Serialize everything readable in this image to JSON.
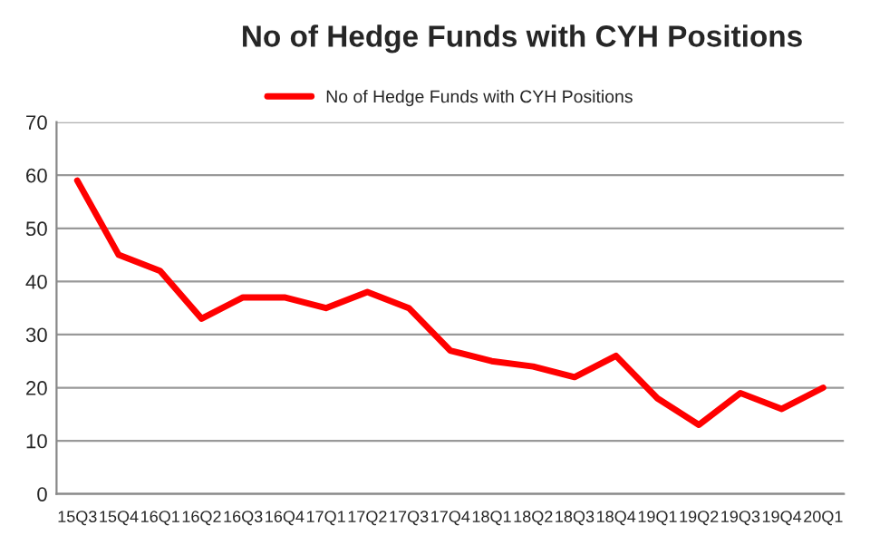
{
  "chart_data": {
    "type": "line",
    "title": "No of Hedge Funds with CYH Positions",
    "categories": [
      "15Q3",
      "15Q4",
      "16Q1",
      "16Q2",
      "16Q3",
      "16Q4",
      "17Q1",
      "17Q2",
      "17Q3",
      "17Q4",
      "18Q1",
      "18Q2",
      "18Q3",
      "18Q4",
      "19Q1",
      "19Q2",
      "19Q3",
      "19Q4",
      "20Q1"
    ],
    "series": [
      {
        "name": "No of Hedge Funds with CYH Positions",
        "color": "#ff0000",
        "values": [
          59,
          45,
          42,
          33,
          37,
          37,
          35,
          38,
          35,
          27,
          25,
          24,
          22,
          26,
          18,
          13,
          19,
          16,
          20
        ]
      }
    ],
    "ylim": [
      0,
      70
    ],
    "yticks": [
      0,
      10,
      20,
      30,
      40,
      50,
      60,
      70
    ],
    "grid": "y",
    "legend": "top",
    "marker": "none",
    "line_style": "solid"
  }
}
